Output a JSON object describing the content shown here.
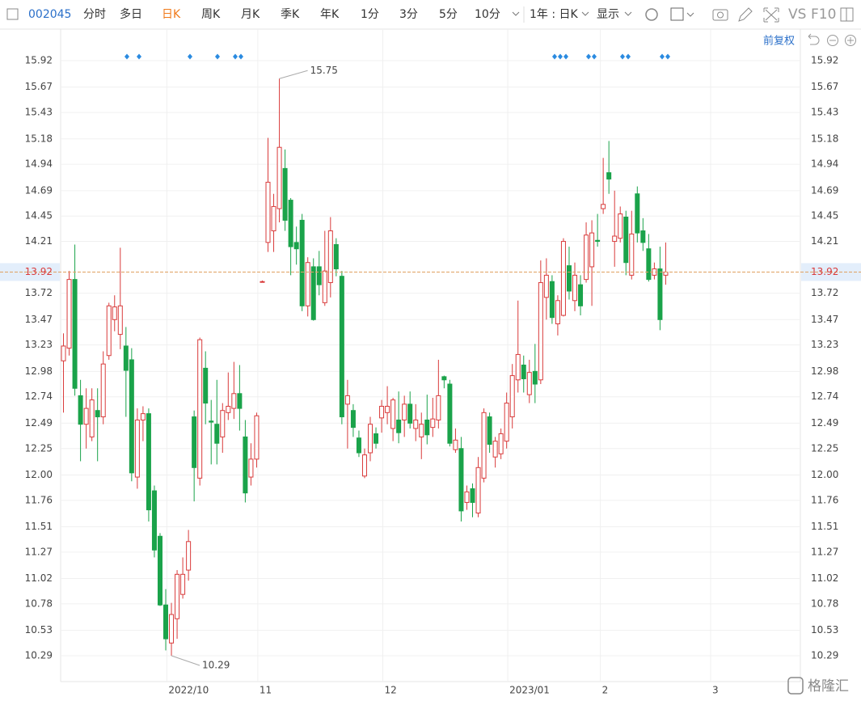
{
  "toolbar": {
    "code": "002045",
    "tabs": [
      "分时",
      "多日",
      "日K",
      "周K",
      "月K",
      "季K",
      "年K",
      "1分",
      "3分",
      "5分",
      "10分"
    ],
    "active_tab": 2,
    "period": "1年 : 日K",
    "display": "显示",
    "vs": "VS",
    "f10": "F10"
  },
  "adjust": "前复权",
  "watermark": "格隆汇",
  "chart_data": {
    "type": "candlestick",
    "up_color": "#d93b3b",
    "down_color": "#1aa34a",
    "price_line_color": "#e0a060",
    "grid": true,
    "xlim": [
      -0.5,
      129.7
    ],
    "xticks": [
      {
        "value": 18.2,
        "label": "2022/10"
      },
      {
        "value": 34.2,
        "label": "11"
      },
      {
        "value": 56.2,
        "label": "12"
      },
      {
        "value": 78.2,
        "label": "2023/01"
      },
      {
        "value": 94.5,
        "label": "2"
      },
      {
        "value": 113.9,
        "label": "3"
      }
    ],
    "ylim": [
      10.045,
      16.188
    ],
    "yticks": [
      15.92,
      15.67,
      15.43,
      15.18,
      14.94,
      14.69,
      14.45,
      14.21,
      13.72,
      13.47,
      13.23,
      12.98,
      12.74,
      12.49,
      12.25,
      {
        "value": 12,
        "label": "12.00"
      },
      11.76,
      11.51,
      11.27,
      11.02,
      10.78,
      10.53,
      10.29
    ],
    "open": [
      13.08,
      13.2,
      13.85,
      12.75,
      12.48,
      12.36,
      12.61,
      12.55,
      13.13,
      13.47,
      13.33,
      13.22,
      13.09,
      11.98,
      12.52,
      12.58,
      11.85,
      11.42,
      10.77,
      10.41,
      10.64,
      10.87,
      11.1,
      12.55,
      11.97,
      13.01,
      12.51,
      12.48,
      12.36,
      12.59,
      12.63,
      12.77,
      12.36,
      11.98,
      12.15,
      13.83,
      14.2,
      14.31,
      14.52,
      14.9,
      14.6,
      14.2,
      14.41,
      13.6,
      13.97,
      13.97,
      13.63,
      13.82,
      14.18,
      13.88,
      12.67,
      12.61,
      12.35,
      11.99,
      12.21,
      12.39,
      12.54,
      12.59,
      12.44,
      12.52,
      12.52,
      12.67,
      12.44,
      12.36,
      12.52,
      12.45,
      12.52,
      12.93,
      12.86,
      12.24,
      12.25,
      11.74,
      11.87,
      11.64,
      11.97,
      12.55,
      12.17,
      12.2,
      12.32,
      12.55,
      12.9,
      13.04,
      12.76,
      12.98,
      12.9,
      13.68,
      13.83,
      13.43,
      13.51,
      13.98,
      13.65,
      13.8,
      13.85,
      13.97,
      14.22,
      14.52,
      14.86,
      14.21,
      14.24,
      14.44,
      13.89,
      14.66,
      14.31,
      14.14,
      13.89,
      13.95,
      13.89
    ],
    "high": [
      13.34,
      13.93,
      14.18,
      12.9,
      12.82,
      12.82,
      12.82,
      13.17,
      13.63,
      13.7,
      14.15,
      13.4,
      13.2,
      12.63,
      12.65,
      12.63,
      11.9,
      11.45,
      10.92,
      10.79,
      11.1,
      11.22,
      11.48,
      12.61,
      13.3,
      13.17,
      12.71,
      12.9,
      12.68,
      12.97,
      13.07,
      13.04,
      12.52,
      12.3,
      12.59,
      13.84,
      15.19,
      14.66,
      15.75,
      15.08,
      14.62,
      14.35,
      14.47,
      14.06,
      14.05,
      14.12,
      14.31,
      14.44,
      14.24,
      13.93,
      12.9,
      12.67,
      12.42,
      12.25,
      12.55,
      12.45,
      12.71,
      12.84,
      12.73,
      12.79,
      12.75,
      12.79,
      12.67,
      12.59,
      12.76,
      12.73,
      13.09,
      12.94,
      12.9,
      12.44,
      12.36,
      11.9,
      11.92,
      12.17,
      12.63,
      12.59,
      12.36,
      12.44,
      12.78,
      13.05,
      13.65,
      13.13,
      13.09,
      13.24,
      14.03,
      14.05,
      13.89,
      13.7,
      14.24,
      14.16,
      14.01,
      13.89,
      14.39,
      14.41,
      14.47,
      15.0,
      15.16,
      14.69,
      14.54,
      14.5,
      14.5,
      14.73,
      14.43,
      14.28,
      14.01,
      14.16,
      14.2
    ],
    "low": [
      12.59,
      13.13,
      12.75,
      12.13,
      12.25,
      12.32,
      12.13,
      12.48,
      13.09,
      13.36,
      13.19,
      12.55,
      11.94,
      11.87,
      12.32,
      11.56,
      11.22,
      10.76,
      10.34,
      10.29,
      10.45,
      10.83,
      11.0,
      11.75,
      11.9,
      12.48,
      12.1,
      12.1,
      12.21,
      12.52,
      12.53,
      12.42,
      11.74,
      11.9,
      12.07,
      13.83,
      14.11,
      14.11,
      14.39,
      14.31,
      13.89,
      13.99,
      13.55,
      13.5,
      13.46,
      13.7,
      13.6,
      13.68,
      13.88,
      12.48,
      12.25,
      12.36,
      12.17,
      11.97,
      12.13,
      12.25,
      12.4,
      12.48,
      12.32,
      12.3,
      12.36,
      12.44,
      12.32,
      12.15,
      12.29,
      12.36,
      12.44,
      12.82,
      12.27,
      12.21,
      11.56,
      11.67,
      11.6,
      11.6,
      11.93,
      12.21,
      12.07,
      12.15,
      12.25,
      12.44,
      12.78,
      12.78,
      12.68,
      12.68,
      12.86,
      13.47,
      13.43,
      13.32,
      13.5,
      13.66,
      13.55,
      13.51,
      13.82,
      13.6,
      14.16,
      14.47,
      14.66,
      13.97,
      14.2,
      13.89,
      13.85,
      14.2,
      14.12,
      13.83,
      13.85,
      13.37,
      13.8
    ],
    "close": [
      13.22,
      13.85,
      12.82,
      12.48,
      12.63,
      12.71,
      12.55,
      13.05,
      13.6,
      13.59,
      13.6,
      12.99,
      12.02,
      12.52,
      12.58,
      11.67,
      11.29,
      10.77,
      10.45,
      10.68,
      11.06,
      11.06,
      11.37,
      12.07,
      13.28,
      12.68,
      12.5,
      12.3,
      12.61,
      12.65,
      12.77,
      12.63,
      11.83,
      12.15,
      12.56,
      13.83,
      14.77,
      14.54,
      15.1,
      14.41,
      14.16,
      14.14,
      13.6,
      14.01,
      13.47,
      13.8,
      13.93,
      14.31,
      13.95,
      12.55,
      12.75,
      12.45,
      12.21,
      12.19,
      12.48,
      12.3,
      12.65,
      12.65,
      12.71,
      12.4,
      12.67,
      12.49,
      12.52,
      12.48,
      12.38,
      12.53,
      12.75,
      12.9,
      12.3,
      12.33,
      11.66,
      11.84,
      11.74,
      12.07,
      12.59,
      12.29,
      12.32,
      12.39,
      12.68,
      12.94,
      13.14,
      12.91,
      12.97,
      12.86,
      13.82,
      13.89,
      13.49,
      13.65,
      14.21,
      13.74,
      13.89,
      13.6,
      14.27,
      14.29,
      14.21,
      14.56,
      14.8,
      14.26,
      14.47,
      14.01,
      14.28,
      14.29,
      14.2,
      13.85,
      13.95,
      13.47,
      13.92
    ]
  }
}
